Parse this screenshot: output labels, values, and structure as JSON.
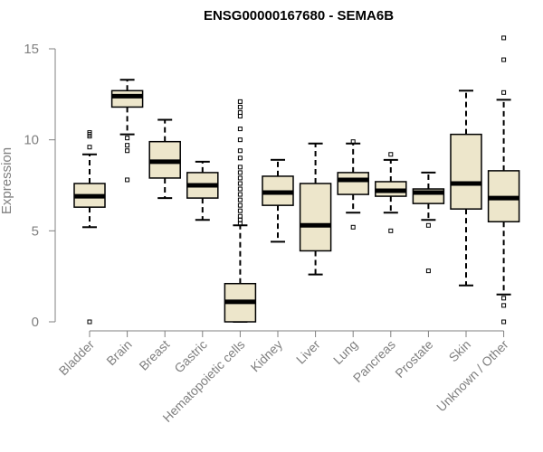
{
  "chart_data": {
    "type": "boxplot",
    "title": "ENSG00000167680 - SEMA6B",
    "xlabel": "",
    "ylabel": "Expression",
    "ylim": [
      0,
      15
    ],
    "yticks": [
      0,
      5,
      10,
      15
    ],
    "grid": false,
    "colors": {
      "box_fill": "#ede6cb",
      "stroke": "#000000",
      "axis": "#808080"
    },
    "categories": [
      "Bladder",
      "Brain",
      "Breast",
      "Gastric",
      "Hematopoietic cells",
      "Kidney",
      "Liver",
      "Lung",
      "Pancreas",
      "Prostate",
      "Skin",
      "Unknown / Other"
    ],
    "boxes": [
      {
        "q1": 6.3,
        "median": 6.9,
        "q3": 7.6,
        "whisker_low": 5.2,
        "whisker_high": 9.2,
        "outliers": [
          0.0,
          9.6,
          10.2,
          10.3,
          10.4
        ]
      },
      {
        "q1": 11.8,
        "median": 12.4,
        "q3": 12.7,
        "whisker_low": 10.3,
        "whisker_high": 13.3,
        "outliers": [
          7.8,
          9.4,
          9.7,
          10.1
        ]
      },
      {
        "q1": 7.9,
        "median": 8.8,
        "q3": 9.9,
        "whisker_low": 6.8,
        "whisker_high": 11.1,
        "outliers": []
      },
      {
        "q1": 6.8,
        "median": 7.5,
        "q3": 8.2,
        "whisker_low": 5.6,
        "whisker_high": 8.8,
        "outliers": []
      },
      {
        "q1": 0.0,
        "median": 1.1,
        "q3": 2.1,
        "whisker_low": 0.0,
        "whisker_high": 5.3,
        "outliers": [
          5.4,
          5.6,
          5.8,
          6.1,
          6.4,
          6.7,
          7.0,
          7.3,
          7.6,
          7.9,
          8.2,
          8.5,
          9.0,
          9.4,
          10.0,
          10.6,
          11.3,
          11.5,
          11.8,
          12.1
        ]
      },
      {
        "q1": 6.4,
        "median": 7.1,
        "q3": 8.0,
        "whisker_low": 4.4,
        "whisker_high": 8.9,
        "outliers": []
      },
      {
        "q1": 3.9,
        "median": 5.3,
        "q3": 7.6,
        "whisker_low": 2.6,
        "whisker_high": 9.8,
        "outliers": []
      },
      {
        "q1": 7.0,
        "median": 7.8,
        "q3": 8.2,
        "whisker_low": 6.0,
        "whisker_high": 9.8,
        "outliers": [
          5.2,
          9.9
        ]
      },
      {
        "q1": 6.9,
        "median": 7.2,
        "q3": 7.7,
        "whisker_low": 6.0,
        "whisker_high": 8.9,
        "outliers": [
          5.0,
          9.2
        ]
      },
      {
        "q1": 6.5,
        "median": 7.1,
        "q3": 7.3,
        "whisker_low": 5.6,
        "whisker_high": 8.2,
        "outliers": [
          2.8,
          5.3
        ]
      },
      {
        "q1": 6.2,
        "median": 7.6,
        "q3": 10.3,
        "whisker_low": 2.0,
        "whisker_high": 12.7,
        "outliers": []
      },
      {
        "q1": 5.5,
        "median": 6.8,
        "q3": 8.3,
        "whisker_low": 1.5,
        "whisker_high": 12.2,
        "outliers": [
          0.0,
          0.9,
          1.3,
          12.6,
          14.4,
          15.6
        ]
      }
    ]
  }
}
